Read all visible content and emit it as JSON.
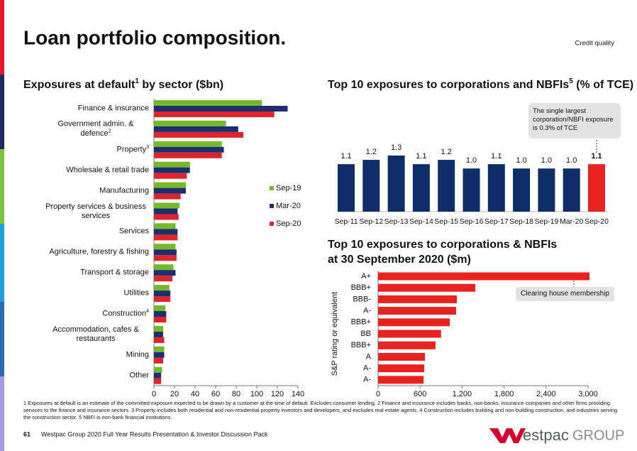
{
  "slide": {
    "title": "Loan portfolio composition.",
    "section": "Credit quality",
    "footnote": "1  Exposures at default is an estimate of the committed exposure expected to be drawn by a customer at the time of default.  Excludes consumer lending.  2  Finance and insurance includes banks, non-banks, insurance companies and other firms providing services to the finance and insurance sectors.  3 Property includes both residential and non-residential property investors and developers, and excludes real estate agents.  4 Construction includes building and non-building construction, and industries serving the construction sector.  5 NBFI is non-bank financial institutions.",
    "page_number": "61",
    "footer": "Westpac Group 2020 Full Year Results Presentation & Investor Discussion Pack",
    "logo_text": "estpac",
    "logo_group": "GROUP"
  },
  "chart_data": [
    {
      "type": "hbar",
      "title_parts": [
        "Exposures at default",
        "1",
        " by sector ($bn)"
      ],
      "categories": [
        "Finance & insurance",
        "Government admin. & defence",
        "Property",
        "Wholesale & retail trade",
        "Manufacturing",
        "Property services & business services",
        "Services",
        "Agriculture, forestry & fishing",
        "Transport & storage",
        "Utilities",
        "Construction",
        "Accommodation, cafes & restaurants",
        "Mining",
        "Other"
      ],
      "category_notes": [
        null,
        "2",
        "3",
        null,
        null,
        null,
        null,
        null,
        null,
        null,
        "4",
        null,
        null,
        null
      ],
      "series": [
        {
          "name": "Sep-19",
          "color": "#76b82a",
          "values": [
            105,
            70,
            66,
            35,
            31,
            25,
            21,
            21,
            19,
            15,
            11,
            9,
            10,
            8
          ]
        },
        {
          "name": "Mar-20",
          "color": "#1b2f6e",
          "values": [
            130,
            82,
            68,
            35,
            31,
            23,
            23,
            22,
            21,
            16,
            12,
            9,
            10,
            7
          ]
        },
        {
          "name": "Sep-20",
          "color": "#e0242b",
          "values": [
            117,
            87,
            66,
            32,
            26,
            24,
            23,
            22,
            18,
            16,
            12,
            10,
            9,
            7
          ]
        }
      ],
      "xlim": [
        0,
        140
      ],
      "xticks": [
        0,
        20,
        40,
        60,
        80,
        100,
        120,
        140
      ],
      "legend": "right"
    },
    {
      "type": "bar",
      "title_parts": [
        "Top 10 exposures to corporations and NBFIs",
        "5",
        "  (% of TCE)"
      ],
      "categories": [
        "Sep-11",
        "Sep-12",
        "Sep-13",
        "Sep-14",
        "Sep-15",
        "Sep-16",
        "Sep-17",
        "Sep-18",
        "Sep-19",
        "Mar-20",
        "Sep-20"
      ],
      "values": [
        1.1,
        1.2,
        1.3,
        1.1,
        1.2,
        1.0,
        1.1,
        1.0,
        1.0,
        1.0,
        1.1
      ],
      "value_labels": [
        "1.1",
        "1.2",
        "1.3",
        "1.1",
        "1.2",
        "1.0",
        "1.1",
        "1.0",
        "1.0",
        "1.0",
        "1.1"
      ],
      "colors": [
        "#0f2d69",
        "#0f2d69",
        "#0f2d69",
        "#0f2d69",
        "#0f2d69",
        "#0f2d69",
        "#0f2d69",
        "#0f2d69",
        "#0f2d69",
        "#0f2d69",
        "#e8231f"
      ],
      "annotation": "The single largest corporation/NBFI exposure is 0.3% of TCE"
    },
    {
      "type": "hbar",
      "title_lines": [
        "Top 10 exposures to corporations & NBFIs",
        "at 30 September 2020 ($m)"
      ],
      "categories": [
        "A+",
        "BBB+",
        "BBB-",
        "A-",
        "BBB+",
        "BB",
        "BBB+",
        "A",
        "A-",
        "A-"
      ],
      "series": [
        {
          "color": "#e8231f",
          "values": [
            3020,
            1390,
            1125,
            1115,
            1025,
            900,
            820,
            670,
            660,
            650
          ]
        }
      ],
      "xlim": [
        0,
        3000
      ],
      "xticks": [
        0,
        600,
        {
          "value": 1200,
          "label": "1,200"
        },
        {
          "value": 1800,
          "label": "1,800"
        },
        {
          "value": 2400,
          "label": "2,400"
        },
        {
          "value": 3000,
          "label": "3,000"
        }
      ],
      "ylabel": "S&P rating or equivalent",
      "annotation": "Clearing house membership"
    }
  ]
}
